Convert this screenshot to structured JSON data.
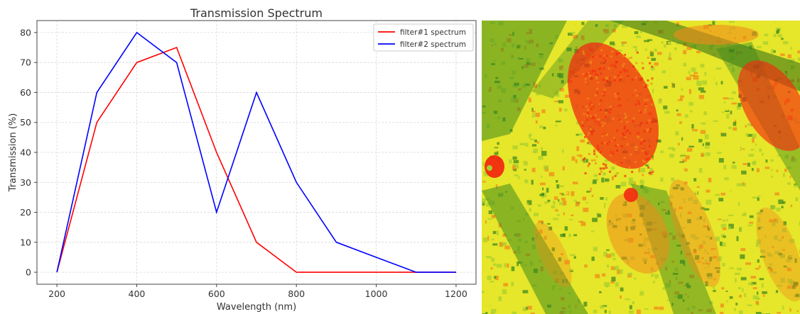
{
  "chart_data": {
    "type": "line",
    "title": "Transmission Spectrum",
    "xlabel": "Wavelength (nm)",
    "ylabel": "Transmission (%)",
    "xlim": [
      150,
      1250
    ],
    "ylim": [
      -4,
      84
    ],
    "xticks": [
      200,
      400,
      600,
      800,
      1000,
      1200
    ],
    "yticks": [
      0,
      10,
      20,
      30,
      40,
      50,
      60,
      70,
      80
    ],
    "grid": true,
    "legend_position": "top-right",
    "series": [
      {
        "name": "filter#1 spectrum",
        "color": "#ff0000",
        "x": [
          200,
          300,
          400,
          500,
          600,
          700,
          800,
          900,
          1000,
          1100,
          1200
        ],
        "y": [
          0,
          50,
          70,
          75,
          40,
          10,
          0,
          0,
          0,
          0,
          0
        ]
      },
      {
        "name": "filter#2 spectrum",
        "color": "#0000ff",
        "x": [
          200,
          300,
          400,
          500,
          600,
          700,
          800,
          900,
          1000,
          1100,
          1200
        ],
        "y": [
          0,
          60,
          80,
          70,
          20,
          60,
          30,
          10,
          5,
          0,
          0
        ]
      }
    ]
  },
  "image_panel": {
    "description_icon": "aerial-field-heatmap",
    "colors": {
      "red": "#f22a10",
      "orange": "#f08a1a",
      "yellow": "#e6e62a",
      "light_green": "#a8cf2e",
      "green": "#3f8a1e",
      "dark_green": "#2a6b16"
    }
  }
}
